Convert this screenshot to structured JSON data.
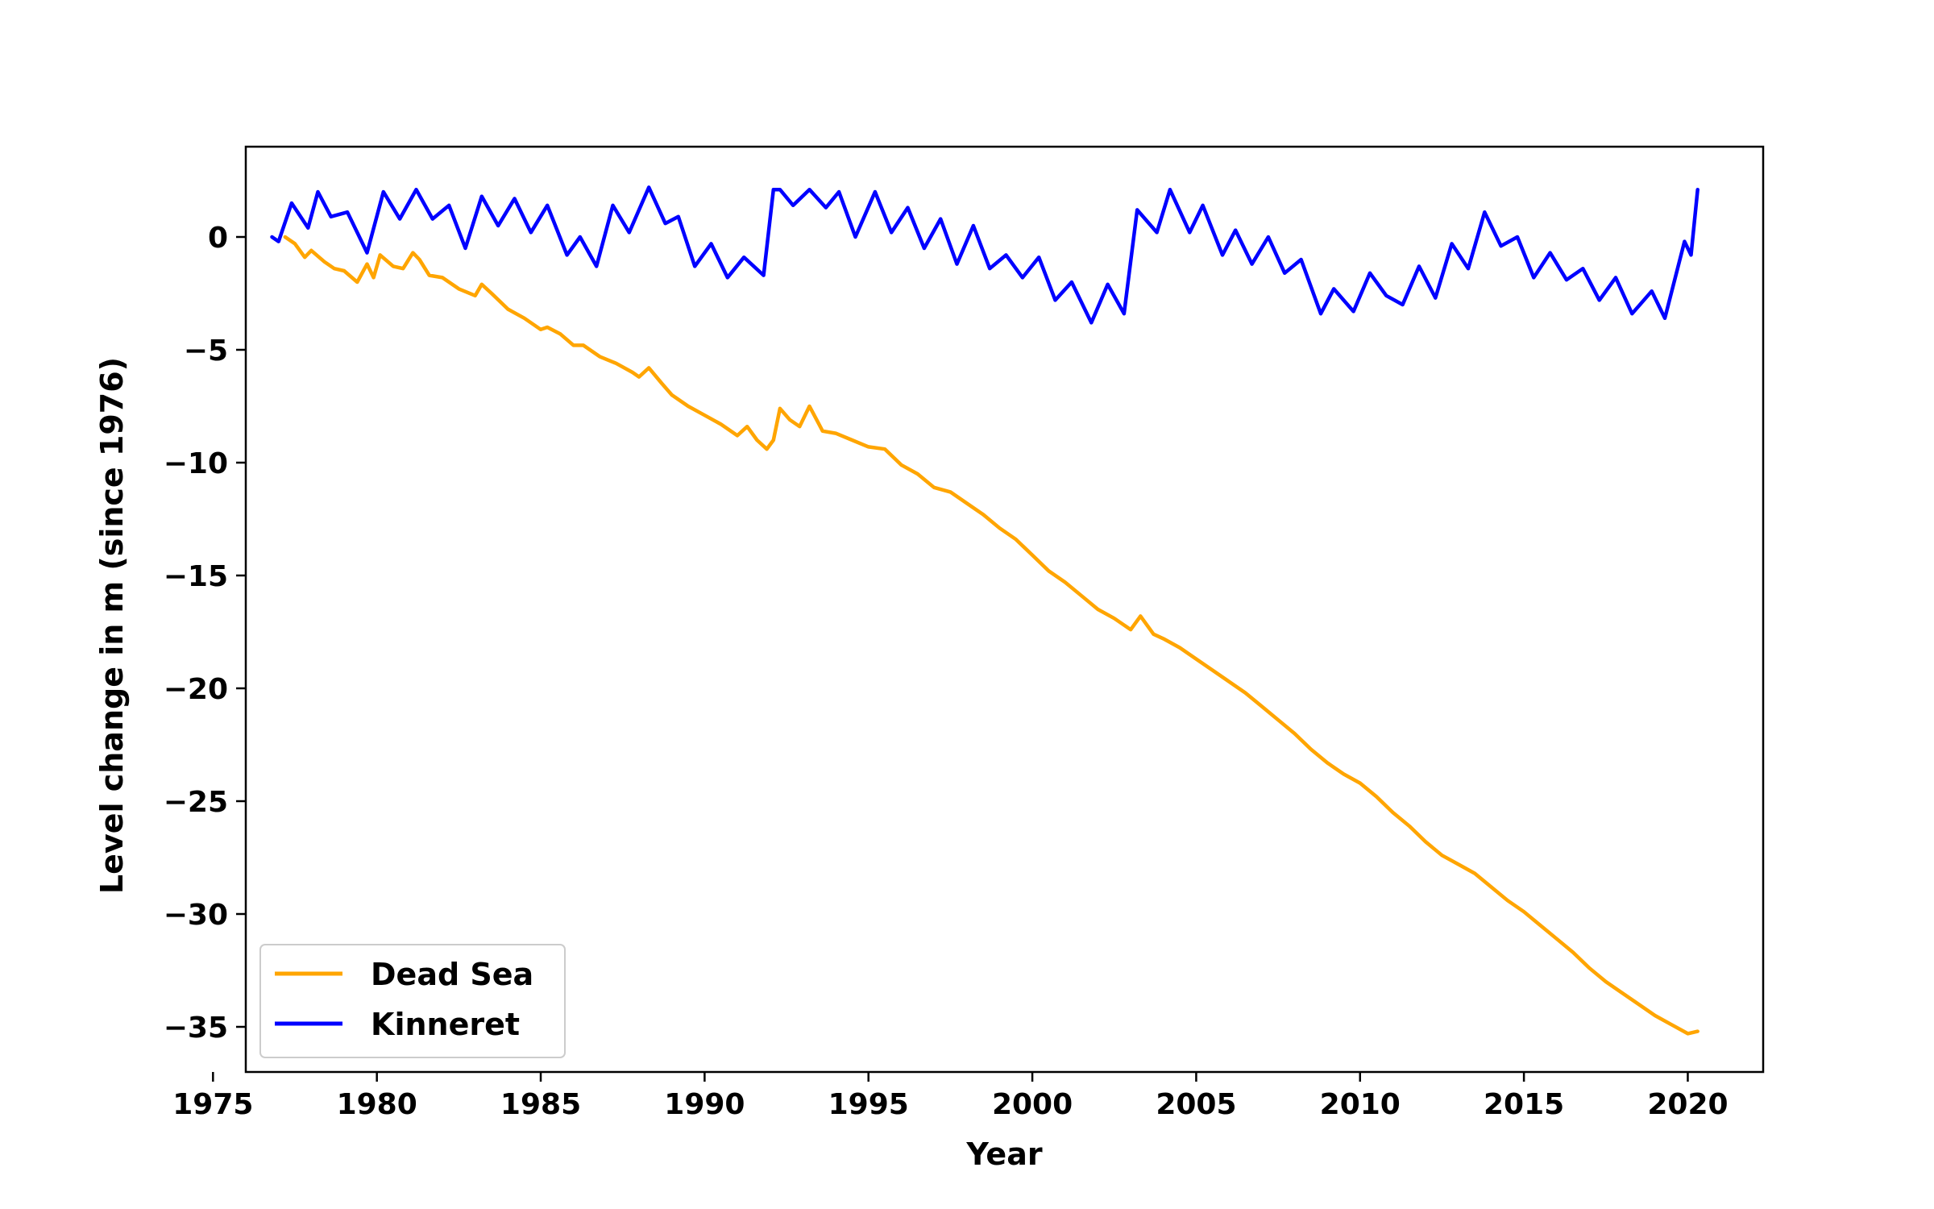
{
  "chart_data": {
    "type": "line",
    "title": "",
    "xlabel": "Year",
    "ylabel": "Level change in m (since 1976)",
    "xlim": [
      1976.0,
      2022.3
    ],
    "ylim": [
      -37.0,
      4.0
    ],
    "xticks": [
      1975,
      1980,
      1985,
      1990,
      1995,
      2000,
      2005,
      2010,
      2015,
      2020
    ],
    "yticks": [
      0,
      -5,
      -10,
      -15,
      -20,
      -25,
      -30,
      -35
    ],
    "ytick_labels": [
      "0",
      "−5",
      "−10",
      "−15",
      "−20",
      "−25",
      "−30",
      "−35"
    ],
    "grid": false,
    "legend_position": "lower-left",
    "series": [
      {
        "name": "Dead Sea",
        "color": "#FFA500",
        "x": [
          1977.2,
          1977.5,
          1977.8,
          1978.0,
          1978.4,
          1978.7,
          1979.0,
          1979.4,
          1979.7,
          1979.9,
          1980.1,
          1980.5,
          1980.8,
          1981.1,
          1981.3,
          1981.6,
          1982.0,
          1982.5,
          1983.0,
          1983.2,
          1983.5,
          1984.0,
          1984.5,
          1985.0,
          1985.2,
          1985.6,
          1986.0,
          1986.3,
          1986.8,
          1987.3,
          1987.8,
          1988.0,
          1988.3,
          1988.7,
          1989.0,
          1989.5,
          1990.0,
          1990.5,
          1991.0,
          1991.3,
          1991.6,
          1991.9,
          1992.1,
          1992.3,
          1992.6,
          1992.9,
          1993.2,
          1993.6,
          1994.0,
          1994.5,
          1995.0,
          1995.5,
          1996.0,
          1996.5,
          1997.0,
          1997.5,
          1998.0,
          1998.5,
          1999.0,
          1999.5,
          2000.0,
          2000.5,
          2001.0,
          2001.5,
          2002.0,
          2002.5,
          2003.0,
          2003.3,
          2003.7,
          2004.0,
          2004.5,
          2005.0,
          2005.5,
          2006.0,
          2006.5,
          2007.0,
          2007.5,
          2008.0,
          2008.5,
          2009.0,
          2009.5,
          2010.0,
          2010.5,
          2011.0,
          2011.5,
          2012.0,
          2012.5,
          2013.0,
          2013.5,
          2014.0,
          2014.5,
          2015.0,
          2015.5,
          2016.0,
          2016.5,
          2017.0,
          2017.5,
          2018.0,
          2018.5,
          2019.0,
          2019.5,
          2020.0,
          2020.3
        ],
        "y": [
          0.0,
          -0.3,
          -0.9,
          -0.6,
          -1.1,
          -1.4,
          -1.5,
          -2.0,
          -1.2,
          -1.8,
          -0.8,
          -1.3,
          -1.4,
          -0.7,
          -1.0,
          -1.7,
          -1.8,
          -2.3,
          -2.6,
          -2.1,
          -2.5,
          -3.2,
          -3.6,
          -4.1,
          -4.0,
          -4.3,
          -4.8,
          -4.8,
          -5.3,
          -5.6,
          -6.0,
          -6.2,
          -5.8,
          -6.5,
          -7.0,
          -7.5,
          -7.9,
          -8.3,
          -8.8,
          -8.4,
          -9.0,
          -9.4,
          -9.0,
          -7.6,
          -8.1,
          -8.4,
          -7.5,
          -8.6,
          -8.7,
          -9.0,
          -9.3,
          -9.4,
          -10.1,
          -10.5,
          -11.1,
          -11.3,
          -11.8,
          -12.3,
          -12.9,
          -13.4,
          -14.1,
          -14.8,
          -15.3,
          -15.9,
          -16.5,
          -16.9,
          -17.4,
          -16.8,
          -17.6,
          -17.8,
          -18.2,
          -18.7,
          -19.2,
          -19.7,
          -20.2,
          -20.8,
          -21.4,
          -22.0,
          -22.7,
          -23.3,
          -23.8,
          -24.2,
          -24.8,
          -25.5,
          -26.1,
          -26.8,
          -27.4,
          -27.8,
          -28.2,
          -28.8,
          -29.4,
          -29.9,
          -30.5,
          -31.1,
          -31.7,
          -32.4,
          -33.0,
          -33.5,
          -34.0,
          -34.5,
          -34.9,
          -35.3,
          -35.2
        ]
      },
      {
        "name": "Kinneret",
        "color": "#0000FF",
        "x": [
          1976.8,
          1977.0,
          1977.4,
          1977.9,
          1978.2,
          1978.6,
          1979.1,
          1979.7,
          1980.2,
          1980.7,
          1981.2,
          1981.7,
          1982.2,
          1982.7,
          1983.2,
          1983.7,
          1984.2,
          1984.7,
          1985.2,
          1985.8,
          1986.2,
          1986.7,
          1987.2,
          1987.7,
          1988.3,
          1988.8,
          1989.2,
          1989.7,
          1990.2,
          1990.7,
          1991.2,
          1991.8,
          1992.1,
          1992.3,
          1992.7,
          1993.2,
          1993.7,
          1994.1,
          1994.6,
          1995.2,
          1995.7,
          1996.2,
          1996.7,
          1997.2,
          1997.7,
          1998.2,
          1998.7,
          1999.2,
          1999.7,
          2000.2,
          2000.7,
          2001.2,
          2001.8,
          2002.3,
          2002.8,
          2003.2,
          2003.8,
          2004.2,
          2004.8,
          2005.2,
          2005.8,
          2006.2,
          2006.7,
          2007.2,
          2007.7,
          2008.2,
          2008.8,
          2009.2,
          2009.8,
          2010.3,
          2010.8,
          2011.3,
          2011.8,
          2012.3,
          2012.8,
          2013.3,
          2013.8,
          2014.3,
          2014.8,
          2015.3,
          2015.8,
          2016.3,
          2016.8,
          2017.3,
          2017.8,
          2018.3,
          2018.9,
          2019.3,
          2019.9,
          2020.1,
          2020.3
        ],
        "y": [
          0.0,
          -0.2,
          1.5,
          0.4,
          2.0,
          0.9,
          1.1,
          -0.7,
          2.0,
          0.8,
          2.1,
          0.8,
          1.4,
          -0.5,
          1.8,
          0.5,
          1.7,
          0.2,
          1.4,
          -0.8,
          0.0,
          -1.3,
          1.4,
          0.2,
          2.2,
          0.6,
          0.9,
          -1.3,
          -0.3,
          -1.8,
          -0.9,
          -1.7,
          2.1,
          2.1,
          1.4,
          2.1,
          1.3,
          2.0,
          0.0,
          2.0,
          0.2,
          1.3,
          -0.5,
          0.8,
          -1.2,
          0.5,
          -1.4,
          -0.8,
          -1.8,
          -0.9,
          -2.8,
          -2.0,
          -3.8,
          -2.1,
          -3.4,
          1.2,
          0.2,
          2.1,
          0.2,
          1.4,
          -0.8,
          0.3,
          -1.2,
          0.0,
          -1.6,
          -1.0,
          -3.4,
          -2.3,
          -3.3,
          -1.6,
          -2.6,
          -3.0,
          -1.3,
          -2.7,
          -0.3,
          -1.4,
          1.1,
          -0.4,
          0.0,
          -1.8,
          -0.7,
          -1.9,
          -1.4,
          -2.8,
          -1.8,
          -3.4,
          -2.4,
          -3.6,
          -0.2,
          -0.8,
          2.1
        ]
      }
    ]
  }
}
